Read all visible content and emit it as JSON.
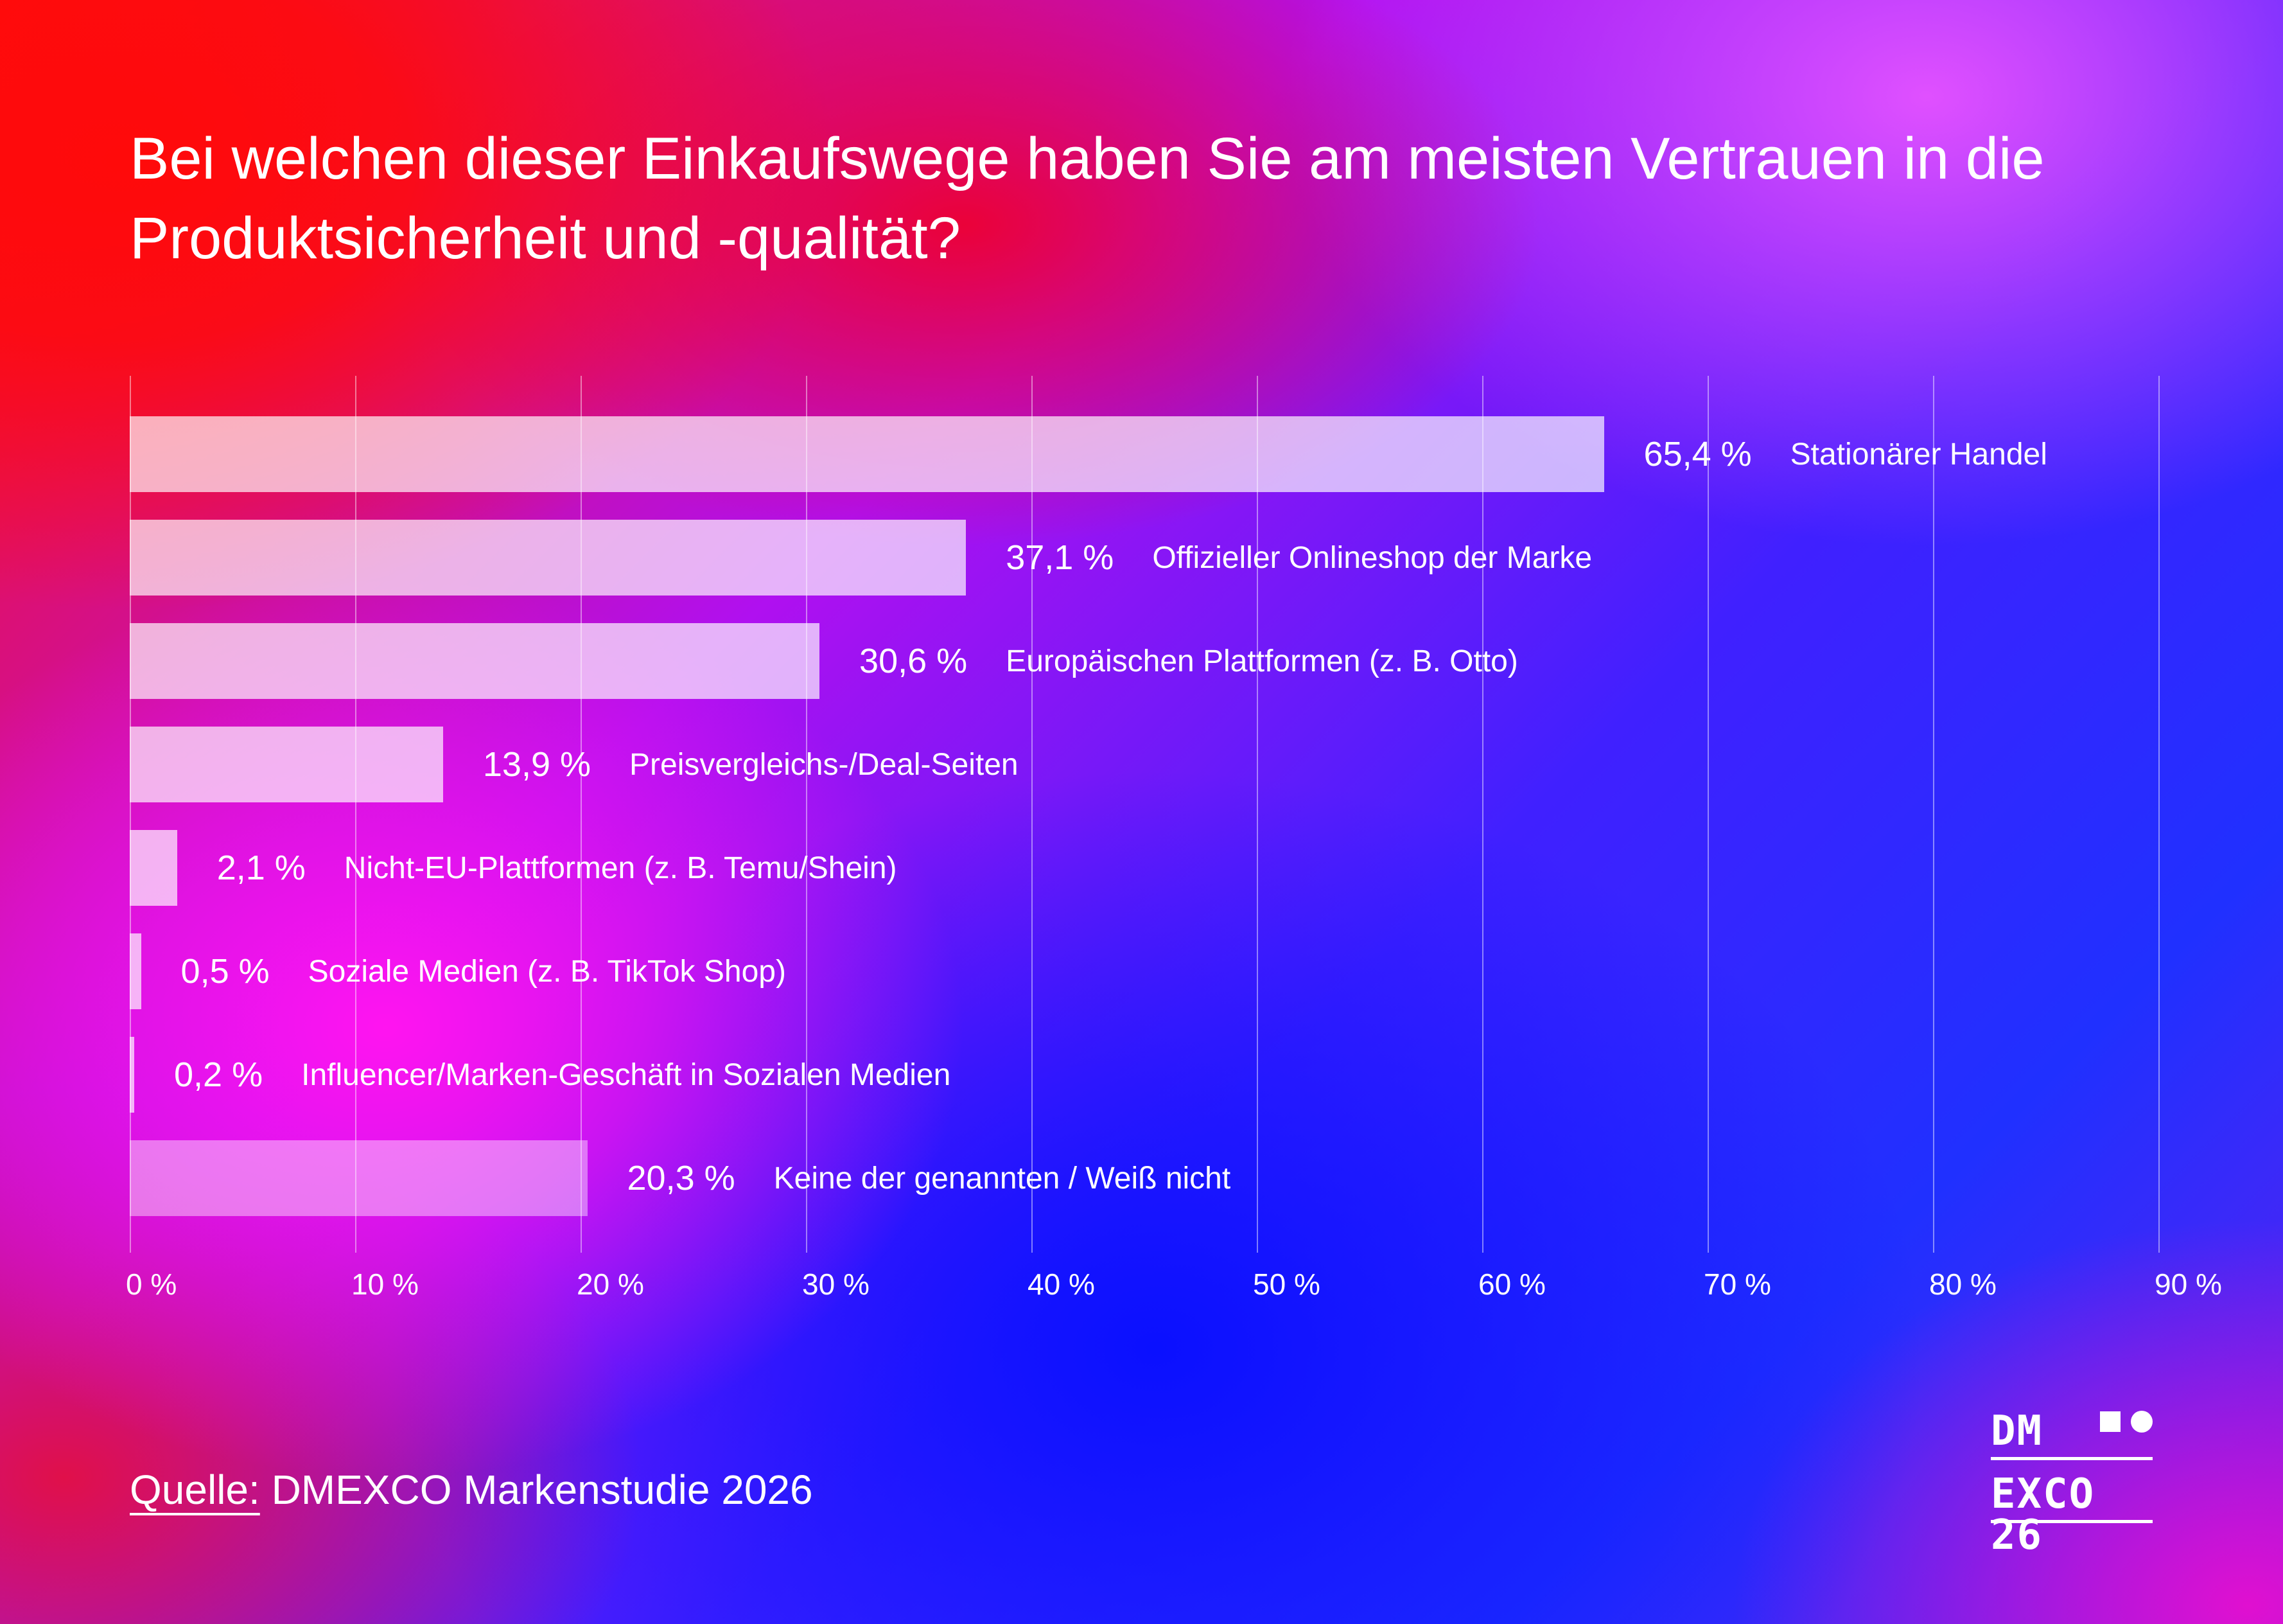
{
  "title": "Bei welchen dieser Einkaufswege haben Sie am meisten Vertrauen in die Produktsicherheit und -qualität?",
  "source": {
    "label": "Quelle:",
    "text": " DMEXCO Markenstudie 2026"
  },
  "logo": {
    "line1": "DM",
    "line2": "EXCO 26"
  },
  "chart_data": {
    "type": "bar",
    "orientation": "horizontal",
    "title": "Bei welchen dieser Einkaufswege haben Sie am meisten Vertrauen in die Produktsicherheit und -qualität?",
    "categories": [
      "Stationärer Handel",
      "Offizieller Onlineshop der Marke",
      "Europäischen Plattformen (z. B. Otto)",
      "Preisvergleichs-/Deal-Seiten",
      "Nicht-EU-Plattformen (z. B. Temu/Shein)",
      "Soziale Medien (z. B. TikTok Shop)",
      "Influencer/Marken-Geschäft in Sozialen Medien",
      "Keine der genannten / Weiß nicht"
    ],
    "values": [
      65.4,
      37.1,
      30.6,
      13.9,
      2.1,
      0.5,
      0.2,
      20.3
    ],
    "value_labels": [
      "65,4 %",
      "37,1 %",
      "30,6 %",
      "13,9 %",
      "2,1 %",
      "0,5 %",
      "0,2 %",
      "20,3 %"
    ],
    "xlim": [
      0,
      90
    ],
    "xticks": [
      "0 %",
      "10 %",
      "20 %",
      "30 %",
      "40 %",
      "50 %",
      "60 %",
      "70 %",
      "80 %",
      "90 %"
    ],
    "grid": true,
    "bar_color": "#ffffff"
  }
}
